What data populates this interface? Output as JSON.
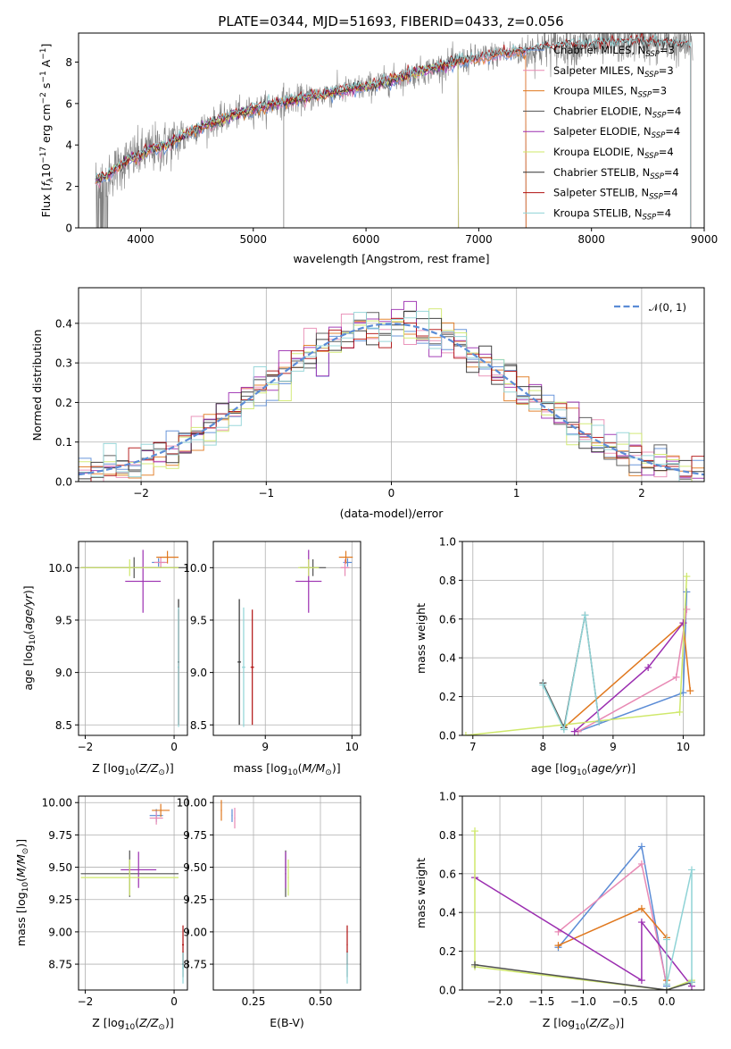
{
  "title": "PLATE=0344, MJD=51693, FIBERID=0433, z=0.056",
  "models": [
    {
      "name": "Chabrier MILES, N",
      "sub": "SSP",
      "suffix": "=3",
      "color": "#5b8cd6"
    },
    {
      "name": "Salpeter MILES, N",
      "sub": "SSP",
      "suffix": "=3",
      "color": "#e889b4"
    },
    {
      "name": "Kroupa MILES, N",
      "sub": "SSP",
      "suffix": "=3",
      "color": "#e0781e"
    },
    {
      "name": "Chabrier ELODIE, N",
      "sub": "SSP",
      "suffix": "=4",
      "color": "#505050"
    },
    {
      "name": "Salpeter ELODIE, N",
      "sub": "SSP",
      "suffix": "=4",
      "color": "#9b2eb0"
    },
    {
      "name": "Kroupa ELODIE, N",
      "sub": "SSP",
      "suffix": "=4",
      "color": "#cfe86a"
    },
    {
      "name": "Chabrier STELIB, N",
      "sub": "SSP",
      "suffix": "=4",
      "color": "#303030"
    },
    {
      "name": "Salpeter STELIB, N",
      "sub": "SSP",
      "suffix": "=4",
      "color": "#b01010"
    },
    {
      "name": "Kroupa STELIB, N",
      "sub": "SSP",
      "suffix": "=4",
      "color": "#8fd3d6"
    }
  ],
  "chart_data": [
    {
      "id": "spectrum",
      "type": "line",
      "ylabel_main": "Flux [",
      "ylabel_sym": "f",
      "ylabel_symsub": "λ",
      "ylabel_rest": "10",
      "ylabel_exp": "−17",
      "ylabel_unit": " erg cm",
      "ylabel_e2": "−2",
      "ylabel_s": " s",
      "ylabel_e3": "−1",
      "ylabel_a": " A",
      "ylabel_e4": "−1",
      "ylabel_end": "]",
      "xlabel": "wavelength [Angstrom, rest frame]",
      "xlim": [
        3450,
        9000
      ],
      "ylim": [
        0,
        9.4
      ],
      "xticks": [
        4000,
        5000,
        6000,
        7000,
        8000,
        9000
      ],
      "yticks": [
        0,
        2,
        4,
        6,
        8
      ],
      "data_color": "#808080",
      "continuum": [
        [
          3600,
          2.3
        ],
        [
          3700,
          2.5
        ],
        [
          3800,
          2.9
        ],
        [
          3900,
          3.3
        ],
        [
          4000,
          3.5
        ],
        [
          4100,
          3.8
        ],
        [
          4200,
          3.9
        ],
        [
          4400,
          4.5
        ],
        [
          4600,
          5.0
        ],
        [
          4800,
          5.4
        ],
        [
          5000,
          5.7
        ],
        [
          5200,
          6.0
        ],
        [
          5400,
          6.2
        ],
        [
          5600,
          6.4
        ],
        [
          5800,
          6.6
        ],
        [
          6000,
          6.8
        ],
        [
          6200,
          7.1
        ],
        [
          6400,
          7.4
        ],
        [
          6600,
          7.7
        ],
        [
          6800,
          8.0
        ],
        [
          7000,
          8.2
        ],
        [
          7200,
          8.4
        ],
        [
          7400,
          8.5
        ],
        [
          7600,
          8.7
        ],
        [
          7800,
          8.8
        ],
        [
          8000,
          8.8
        ],
        [
          8200,
          8.9
        ],
        [
          8400,
          9.0
        ],
        [
          8600,
          8.9
        ],
        [
          8800,
          8.8
        ]
      ],
      "model_end": {
        "MILES": 7420,
        "ELODIE": 6820,
        "STELIB": 8880
      }
    },
    {
      "id": "residuals",
      "type": "histogram",
      "xlabel": "(data-model)/error",
      "ylabel": "Normed distribution",
      "xlim": [
        -2.5,
        2.5
      ],
      "ylim": [
        0,
        0.49
      ],
      "xticks": [
        -2,
        -1,
        0,
        1,
        2
      ],
      "yticks": [
        0.0,
        0.1,
        0.2,
        0.3,
        0.4
      ],
      "legend_label": "𝒩(0, 1)",
      "legend_color": "#5b8cd6",
      "bin_width": 0.1
    },
    {
      "id": "age_vs_Z",
      "type": "errorbar",
      "xlabel_pre": "Z [log",
      "xlabel_sub": "10",
      "xlabel_post": "(Z/Z",
      "xlabel_sun": "⊙",
      "xlabel_end": ")]",
      "ylabel_pre": "age  [log",
      "ylabel_sub": "10",
      "ylabel_post": "(age/yr)]",
      "xlim": [
        -2.15,
        0.3
      ],
      "ylim": [
        8.4,
        10.25
      ],
      "xticks": [
        -2,
        0
      ],
      "yticks": [
        8.5,
        9.0,
        9.5,
        10.0
      ],
      "points": [
        {
          "m": 0,
          "x": -0.35,
          "y": 10.05,
          "xerr": 0.15,
          "yerr": 0.04
        },
        {
          "m": 1,
          "x": -0.3,
          "y": 10.05,
          "xerr": 0.15,
          "yerr": 0.05
        },
        {
          "m": 2,
          "x": -0.15,
          "y": 10.1,
          "xerr": 0.25,
          "yerr": 0.06
        },
        {
          "m": 3,
          "x": -0.9,
          "y": 10.0,
          "xerr": 1.2,
          "yerr": 0.1
        },
        {
          "m": 4,
          "x": -0.7,
          "y": 9.87,
          "xerr": 0.4,
          "yerr": 0.3
        },
        {
          "m": 5,
          "x": -1.0,
          "y": 10.0,
          "xerr": 1.1,
          "yerr": 0.08
        },
        {
          "m": 6,
          "x": 0.1,
          "y": 9.1,
          "xerr": 0.02,
          "yerr": 0.6
        },
        {
          "m": 7,
          "x": 0.1,
          "y": 9.05,
          "xerr": 0.02,
          "yerr": 0.55
        },
        {
          "m": 8,
          "x": 0.1,
          "y": 9.05,
          "xerr": 0.02,
          "yerr": 0.57
        }
      ]
    },
    {
      "id": "age_vs_mass",
      "type": "errorbar",
      "xlabel_pre": "mass [log",
      "xlabel_sub": "10",
      "xlabel_post": "(M/M",
      "xlabel_sun": "⊙",
      "xlabel_end": ")]",
      "xlim": [
        8.4,
        10.1
      ],
      "ylim": [
        8.4,
        10.25
      ],
      "xticks": [
        9,
        10
      ],
      "yticks": [
        8.5,
        9.0,
        9.5,
        10.0
      ],
      "points": [
        {
          "m": 0,
          "x": 9.95,
          "y": 10.05,
          "xerr": 0.05,
          "yerr": 0.04
        },
        {
          "m": 1,
          "x": 9.92,
          "y": 10.0,
          "xerr": 0.05,
          "yerr": 0.08
        },
        {
          "m": 2,
          "x": 9.93,
          "y": 10.1,
          "xerr": 0.08,
          "yerr": 0.06
        },
        {
          "m": 3,
          "x": 9.55,
          "y": 10.0,
          "xerr": 0.15,
          "yerr": 0.08
        },
        {
          "m": 4,
          "x": 9.5,
          "y": 9.87,
          "xerr": 0.15,
          "yerr": 0.3
        },
        {
          "m": 5,
          "x": 9.5,
          "y": 10.0,
          "xerr": 0.12,
          "yerr": 0.08
        },
        {
          "m": 6,
          "x": 8.7,
          "y": 9.1,
          "xerr": 0.02,
          "yerr": 0.6
        },
        {
          "m": 7,
          "x": 8.85,
          "y": 9.05,
          "xerr": 0.02,
          "yerr": 0.55
        },
        {
          "m": 8,
          "x": 8.75,
          "y": 9.05,
          "xerr": 0.02,
          "yerr": 0.57
        }
      ]
    },
    {
      "id": "weight_vs_age",
      "type": "line",
      "xlabel_pre": "age  [log",
      "xlabel_sub": "10",
      "xlabel_post": "(age/yr)]",
      "ylabel": "mass weight",
      "xlim": [
        6.85,
        10.3
      ],
      "ylim": [
        0,
        1.0
      ],
      "xticks": [
        7,
        8,
        9,
        10
      ],
      "yticks": [
        0.0,
        0.2,
        0.4,
        0.6,
        0.8,
        1.0
      ],
      "series": [
        {
          "m": 0,
          "pts": [
            [
              8.5,
              0.02
            ],
            [
              10.0,
              0.22
            ],
            [
              10.05,
              0.74
            ]
          ]
        },
        {
          "m": 1,
          "pts": [
            [
              8.5,
              0.02
            ],
            [
              9.9,
              0.3
            ],
            [
              10.05,
              0.65
            ]
          ]
        },
        {
          "m": 2,
          "pts": [
            [
              8.3,
              0.04
            ],
            [
              10.0,
              0.58
            ],
            [
              10.1,
              0.23
            ]
          ]
        },
        {
          "m": 4,
          "pts": [
            [
              8.45,
              0.02
            ],
            [
              9.5,
              0.35
            ],
            [
              10.0,
              0.58
            ]
          ]
        },
        {
          "m": 5,
          "pts": [
            [
              6.9,
              0.0
            ],
            [
              9.95,
              0.12
            ],
            [
              10.05,
              0.82
            ]
          ]
        },
        {
          "m": 3,
          "pts": [
            [
              8.0,
              0.27
            ],
            [
              8.3,
              0.04
            ],
            [
              8.6,
              0.62
            ],
            [
              8.8,
              0.07
            ]
          ]
        },
        {
          "m": 8,
          "pts": [
            [
              8.0,
              0.26
            ],
            [
              8.3,
              0.03
            ],
            [
              8.6,
              0.62
            ],
            [
              8.8,
              0.07
            ]
          ]
        }
      ]
    },
    {
      "id": "mass_vs_Z",
      "type": "errorbar",
      "xlabel_pre": "Z [log",
      "xlabel_sub": "10",
      "xlabel_post": "(Z/Z",
      "xlabel_sun": "⊙",
      "xlabel_end": ")]",
      "ylabel_pre": "mass [log",
      "ylabel_sub": "10",
      "ylabel_post": "(M/M",
      "ylabel_sun": "⊙",
      "ylabel_end": ")]",
      "xlim": [
        -2.15,
        0.3
      ],
      "ylim": [
        8.55,
        10.05
      ],
      "xticks": [
        -2,
        0
      ],
      "yticks": [
        8.75,
        9.0,
        9.25,
        9.5,
        9.75,
        10.0
      ],
      "points": [
        {
          "m": 0,
          "x": -0.4,
          "y": 9.9,
          "xerr": 0.15,
          "yerr": 0.05
        },
        {
          "m": 1,
          "x": -0.4,
          "y": 9.88,
          "xerr": 0.15,
          "yerr": 0.05
        },
        {
          "m": 2,
          "x": -0.3,
          "y": 9.94,
          "xerr": 0.2,
          "yerr": 0.05
        },
        {
          "m": 3,
          "x": -1.0,
          "y": 9.45,
          "xerr": 1.1,
          "yerr": 0.18
        },
        {
          "m": 4,
          "x": -0.8,
          "y": 9.48,
          "xerr": 0.4,
          "yerr": 0.14
        },
        {
          "m": 5,
          "x": -1.0,
          "y": 9.42,
          "xerr": 1.1,
          "yerr": 0.14
        },
        {
          "m": 6,
          "x": 0.2,
          "y": 8.75,
          "xerr": 0.02,
          "yerr": 0.1
        },
        {
          "m": 7,
          "x": 0.2,
          "y": 8.9,
          "xerr": 0.02,
          "yerr": 0.15
        },
        {
          "m": 8,
          "x": 0.2,
          "y": 8.72,
          "xerr": 0.02,
          "yerr": 0.12
        }
      ]
    },
    {
      "id": "mass_vs_EBV",
      "type": "errorbar",
      "xlabel": "E(B-V)",
      "xlim": [
        0.1,
        0.65
      ],
      "ylim": [
        8.55,
        10.05
      ],
      "xticks": [
        0.25,
        0.5
      ],
      "yticks": [
        8.75,
        9.0,
        9.25,
        9.5,
        9.75,
        10.0
      ],
      "points": [
        {
          "m": 0,
          "x": 0.17,
          "y": 9.9,
          "xerr": 0.002,
          "yerr": 0.05
        },
        {
          "m": 1,
          "x": 0.18,
          "y": 9.88,
          "xerr": 0.002,
          "yerr": 0.08
        },
        {
          "m": 2,
          "x": 0.13,
          "y": 9.94,
          "xerr": 0.002,
          "yerr": 0.08
        },
        {
          "m": 3,
          "x": 0.37,
          "y": 9.45,
          "xerr": 0.002,
          "yerr": 0.18
        },
        {
          "m": 4,
          "x": 0.37,
          "y": 9.48,
          "xerr": 0.002,
          "yerr": 0.14
        },
        {
          "m": 5,
          "x": 0.38,
          "y": 9.42,
          "xerr": 0.002,
          "yerr": 0.14
        },
        {
          "m": 6,
          "x": 0.6,
          "y": 8.75,
          "xerr": 0.002,
          "yerr": 0.1
        },
        {
          "m": 7,
          "x": 0.6,
          "y": 8.9,
          "xerr": 0.002,
          "yerr": 0.15
        },
        {
          "m": 8,
          "x": 0.6,
          "y": 8.72,
          "xerr": 0.002,
          "yerr": 0.12
        }
      ]
    },
    {
      "id": "weight_vs_Z",
      "type": "line",
      "xlabel_pre": "Z [log",
      "xlabel_sub": "10",
      "xlabel_post": "(Z/Z",
      "xlabel_sun": "⊙",
      "xlabel_end": ")]",
      "ylabel": "mass weight",
      "xlim": [
        -2.45,
        0.45
      ],
      "ylim": [
        0,
        1.0
      ],
      "xticks": [
        -2.0,
        -1.5,
        -1.0,
        -0.5,
        0.0
      ],
      "yticks": [
        0.0,
        0.2,
        0.4,
        0.6,
        0.8,
        1.0
      ],
      "series": [
        {
          "m": 0,
          "pts": [
            [
              -1.3,
              0.22
            ],
            [
              -0.3,
              0.74
            ],
            [
              0.0,
              0.02
            ]
          ]
        },
        {
          "m": 1,
          "pts": [
            [
              -1.3,
              0.3
            ],
            [
              -0.3,
              0.65
            ],
            [
              0.0,
              0.03
            ]
          ]
        },
        {
          "m": 2,
          "pts": [
            [
              -1.3,
              0.23
            ],
            [
              -0.3,
              0.42
            ],
            [
              0.0,
              0.27
            ],
            [
              0.0,
              0.05
            ]
          ]
        },
        {
          "m": 4,
          "pts": [
            [
              -2.3,
              0.58
            ],
            [
              -0.3,
              0.05
            ],
            [
              -0.3,
              0.35
            ],
            [
              0.3,
              0.02
            ]
          ]
        },
        {
          "m": 5,
          "pts": [
            [
              -2.3,
              0.82
            ],
            [
              -2.3,
              0.12
            ],
            [
              0.0,
              0.0
            ],
            [
              0.3,
              0.05
            ]
          ]
        },
        {
          "m": 3,
          "pts": [
            [
              -2.3,
              0.13
            ],
            [
              0.0,
              0.0
            ],
            [
              0.3,
              0.04
            ]
          ]
        },
        {
          "m": 8,
          "pts": [
            [
              0.0,
              0.26
            ],
            [
              0.0,
              0.03
            ],
            [
              0.3,
              0.62
            ],
            [
              0.3,
              0.04
            ]
          ]
        }
      ]
    }
  ]
}
